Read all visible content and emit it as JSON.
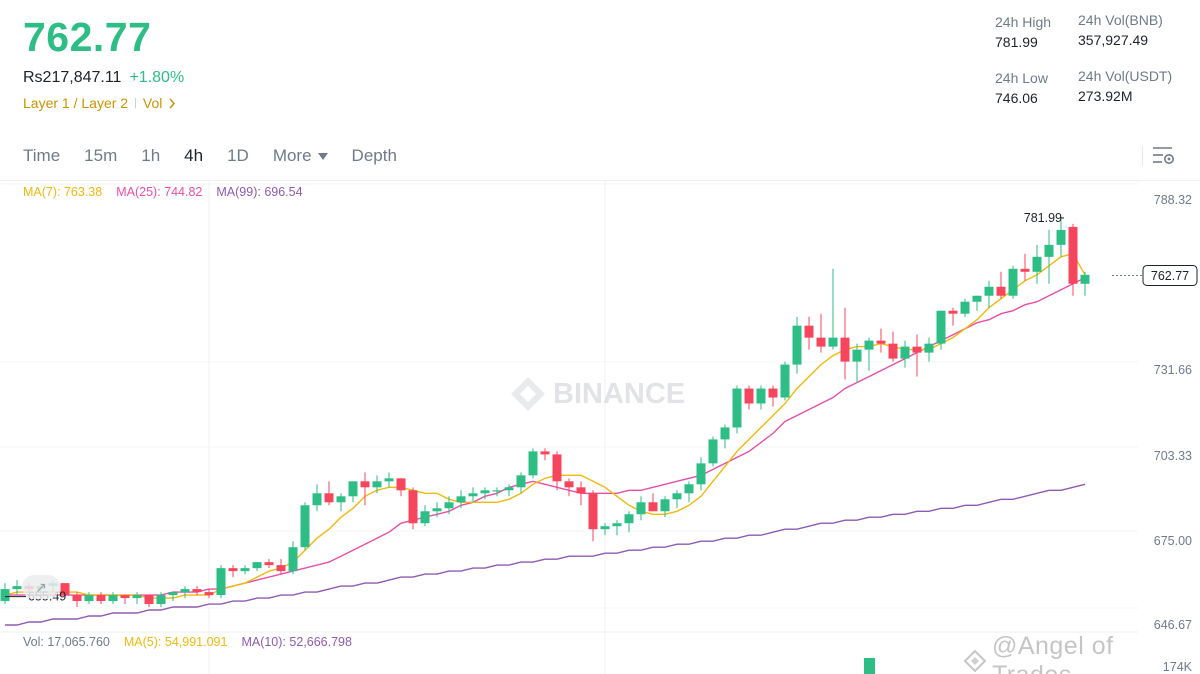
{
  "header": {
    "last_price": "762.77",
    "fiat_price": "Rs217,847.11",
    "change_pct": "+1.80%",
    "tags": {
      "layer": "Layer 1 / Layer 2",
      "vol": "Vol"
    }
  },
  "stats": {
    "high_label": "24h High",
    "high_value": "781.99",
    "low_label": "24h Low",
    "low_value": "746.06",
    "vol_base_label": "24h Vol(BNB)",
    "vol_base_value": "357,927.49",
    "vol_quote_label": "24h Vol(USDT)",
    "vol_quote_value": "273.92M"
  },
  "toolbar": {
    "timeframes": [
      "Time",
      "15m",
      "1h",
      "4h",
      "1D"
    ],
    "active_timeframe": "4h",
    "more_label": "More",
    "depth_label": "Depth"
  },
  "indicators": {
    "ma7": "MA(7): 763.38",
    "ma25": "MA(25): 744.82",
    "ma99": "MA(99): 696.54",
    "vol": "Vol: 17,065.760",
    "vol_ma5": "MA(5): 54,991.091",
    "vol_ma10": "MA(10): 52,666.798"
  },
  "watermark": {
    "brand": "BINANCE",
    "credit": "@Angel of Trades"
  },
  "colors": {
    "up": "#2ebd85",
    "down": "#f6465d",
    "ma7": "#f0b90b",
    "ma25": "#e84fa8",
    "ma99": "#8e5bb2"
  },
  "chart_data": {
    "type": "candlestick",
    "y_ticks": [
      "788.32",
      "731.66",
      "703.33",
      "675.00",
      "646.67"
    ],
    "ylim": [
      646.67,
      788.32
    ],
    "vol_tick": "174K",
    "current_price_label": "762.77",
    "high_marker_label": "781.99",
    "low_marker_label": "655.49",
    "candles": [
      [
        654,
        660,
        653,
        658
      ],
      [
        658,
        661,
        656,
        659
      ],
      [
        659,
        660,
        656,
        658
      ],
      [
        658,
        660,
        656,
        659
      ],
      [
        659,
        661,
        657,
        660
      ],
      [
        660,
        659,
        655,
        656
      ],
      [
        656,
        657,
        652,
        654
      ],
      [
        654,
        657,
        653,
        656
      ],
      [
        656,
        657,
        653,
        654
      ],
      [
        654,
        657,
        653,
        656
      ],
      [
        656,
        656,
        653,
        655
      ],
      [
        655,
        657,
        653,
        656
      ],
      [
        656,
        656,
        652,
        653
      ],
      [
        653,
        657,
        652,
        656
      ],
      [
        656,
        657,
        654,
        657
      ],
      [
        657,
        659,
        655,
        658
      ],
      [
        658,
        659,
        656,
        657
      ],
      [
        657,
        658,
        655,
        656
      ],
      [
        656,
        666,
        655,
        665
      ],
      [
        665,
        666,
        662,
        664
      ],
      [
        664,
        666,
        663,
        665
      ],
      [
        665,
        667,
        664,
        667
      ],
      [
        667,
        668,
        665,
        666
      ],
      [
        666,
        668,
        663,
        664
      ],
      [
        664,
        674,
        663,
        672
      ],
      [
        672,
        687,
        671,
        686
      ],
      [
        686,
        693,
        684,
        690
      ],
      [
        690,
        694,
        686,
        687
      ],
      [
        687,
        690,
        684,
        689
      ],
      [
        689,
        694,
        687,
        694
      ],
      [
        694,
        697,
        686,
        692
      ],
      [
        692,
        696,
        690,
        694
      ],
      [
        694,
        697,
        692,
        695
      ],
      [
        695,
        695,
        689,
        691
      ],
      [
        691,
        692,
        678,
        680
      ],
      [
        680,
        686,
        679,
        684
      ],
      [
        684,
        687,
        682,
        685
      ],
      [
        685,
        689,
        683,
        687
      ],
      [
        687,
        691,
        685,
        689
      ],
      [
        689,
        692,
        687,
        690
      ],
      [
        690,
        692,
        688,
        691
      ],
      [
        691,
        692,
        689,
        691
      ],
      [
        691,
        693,
        689,
        692
      ],
      [
        692,
        697,
        690,
        696
      ],
      [
        696,
        705,
        695,
        704
      ],
      [
        704,
        705,
        701,
        703
      ],
      [
        703,
        704,
        691,
        694
      ],
      [
        694,
        695,
        689,
        692
      ],
      [
        692,
        694,
        686,
        690
      ],
      [
        690,
        691,
        674,
        678
      ],
      [
        678,
        680,
        676,
        679
      ],
      [
        679,
        681,
        676,
        680
      ],
      [
        680,
        684,
        677,
        683
      ],
      [
        683,
        689,
        681,
        687
      ],
      [
        687,
        690,
        684,
        684
      ],
      [
        684,
        689,
        682,
        688
      ],
      [
        688,
        691,
        685,
        690
      ],
      [
        690,
        694,
        687,
        693
      ],
      [
        693,
        702,
        691,
        700
      ],
      [
        700,
        709,
        699,
        708
      ],
      [
        708,
        713,
        705,
        712
      ],
      [
        712,
        726,
        710,
        725
      ],
      [
        725,
        726,
        718,
        720
      ],
      [
        720,
        726,
        718,
        725
      ],
      [
        725,
        726,
        719,
        722
      ],
      [
        722,
        734,
        721,
        733
      ],
      [
        733,
        749,
        730,
        746
      ],
      [
        746,
        749,
        738,
        742
      ],
      [
        742,
        750,
        737,
        739
      ],
      [
        739,
        765,
        738,
        742
      ],
      [
        742,
        752,
        728,
        734
      ],
      [
        734,
        740,
        727,
        738
      ],
      [
        738,
        742,
        731,
        741
      ],
      [
        741,
        745,
        737,
        740
      ],
      [
        740,
        744,
        734,
        735
      ],
      [
        735,
        741,
        732,
        739
      ],
      [
        739,
        743,
        729,
        737
      ],
      [
        737,
        742,
        734,
        740
      ],
      [
        740,
        751,
        738,
        751
      ],
      [
        751,
        752,
        746,
        750
      ],
      [
        750,
        755,
        749,
        754
      ],
      [
        754,
        756,
        751,
        756
      ],
      [
        756,
        761,
        752,
        759
      ],
      [
        759,
        764,
        755,
        756
      ],
      [
        756,
        766,
        755,
        765
      ],
      [
        765,
        770,
        761,
        764
      ],
      [
        764,
        773,
        760,
        769
      ],
      [
        769,
        778,
        760,
        773
      ],
      [
        773,
        782,
        769,
        778
      ],
      [
        779,
        780,
        756,
        760
      ],
      [
        760,
        764,
        756,
        763
      ]
    ],
    "ma7": [
      656,
      657,
      657,
      657,
      657,
      657,
      657,
      656,
      656,
      656,
      656,
      656,
      655,
      655,
      655,
      656,
      656,
      656,
      658,
      659,
      660,
      662,
      664,
      665,
      667,
      671,
      675,
      678,
      682,
      685,
      689,
      691,
      692,
      692,
      691,
      690,
      690,
      688,
      687,
      687,
      687,
      687,
      688,
      690,
      693,
      695,
      696,
      696,
      696,
      694,
      692,
      689,
      686,
      684,
      683,
      683,
      684,
      686,
      689,
      694,
      699,
      704,
      708,
      712,
      716,
      720,
      725,
      729,
      733,
      736,
      738,
      739,
      739,
      740,
      739,
      738,
      738,
      738,
      740,
      742,
      745,
      748,
      752,
      755,
      758,
      761,
      763,
      766,
      769,
      770,
      763
    ],
    "ma25": [
      656,
      656,
      656,
      656,
      656,
      656,
      656,
      656,
      656,
      656,
      656,
      656,
      656,
      656,
      657,
      657,
      657,
      658,
      658,
      659,
      660,
      661,
      662,
      663,
      664,
      665,
      666,
      667,
      669,
      671,
      673,
      675,
      677,
      680,
      681,
      682,
      683,
      684,
      686,
      687,
      689,
      690,
      692,
      693,
      694,
      693,
      692,
      691,
      690,
      690,
      690,
      690,
      691,
      691,
      692,
      693,
      694,
      695,
      696,
      698,
      700,
      702,
      704,
      707,
      710,
      714,
      716,
      718,
      720,
      722,
      725,
      727,
      729,
      731,
      733,
      735,
      737,
      739,
      741,
      743,
      745,
      747,
      748,
      750,
      751,
      753,
      754,
      756,
      758,
      760,
      762
    ],
    "ma99": [
      646,
      646,
      647,
      647,
      648,
      648,
      648,
      649,
      649,
      650,
      650,
      650,
      651,
      651,
      652,
      652,
      652,
      653,
      653,
      654,
      654,
      655,
      655,
      656,
      656,
      657,
      657,
      658,
      659,
      659,
      660,
      660,
      661,
      662,
      662,
      663,
      663,
      664,
      664,
      665,
      665,
      666,
      666,
      667,
      667,
      668,
      668,
      669,
      669,
      669,
      670,
      670,
      671,
      671,
      672,
      672,
      673,
      673,
      674,
      674,
      675,
      675,
      676,
      676,
      677,
      678,
      678,
      679,
      680,
      680,
      681,
      681,
      682,
      682,
      683,
      683,
      684,
      684,
      685,
      685,
      686,
      686,
      687,
      688,
      688,
      689,
      690,
      691,
      691,
      692,
      693
    ]
  }
}
